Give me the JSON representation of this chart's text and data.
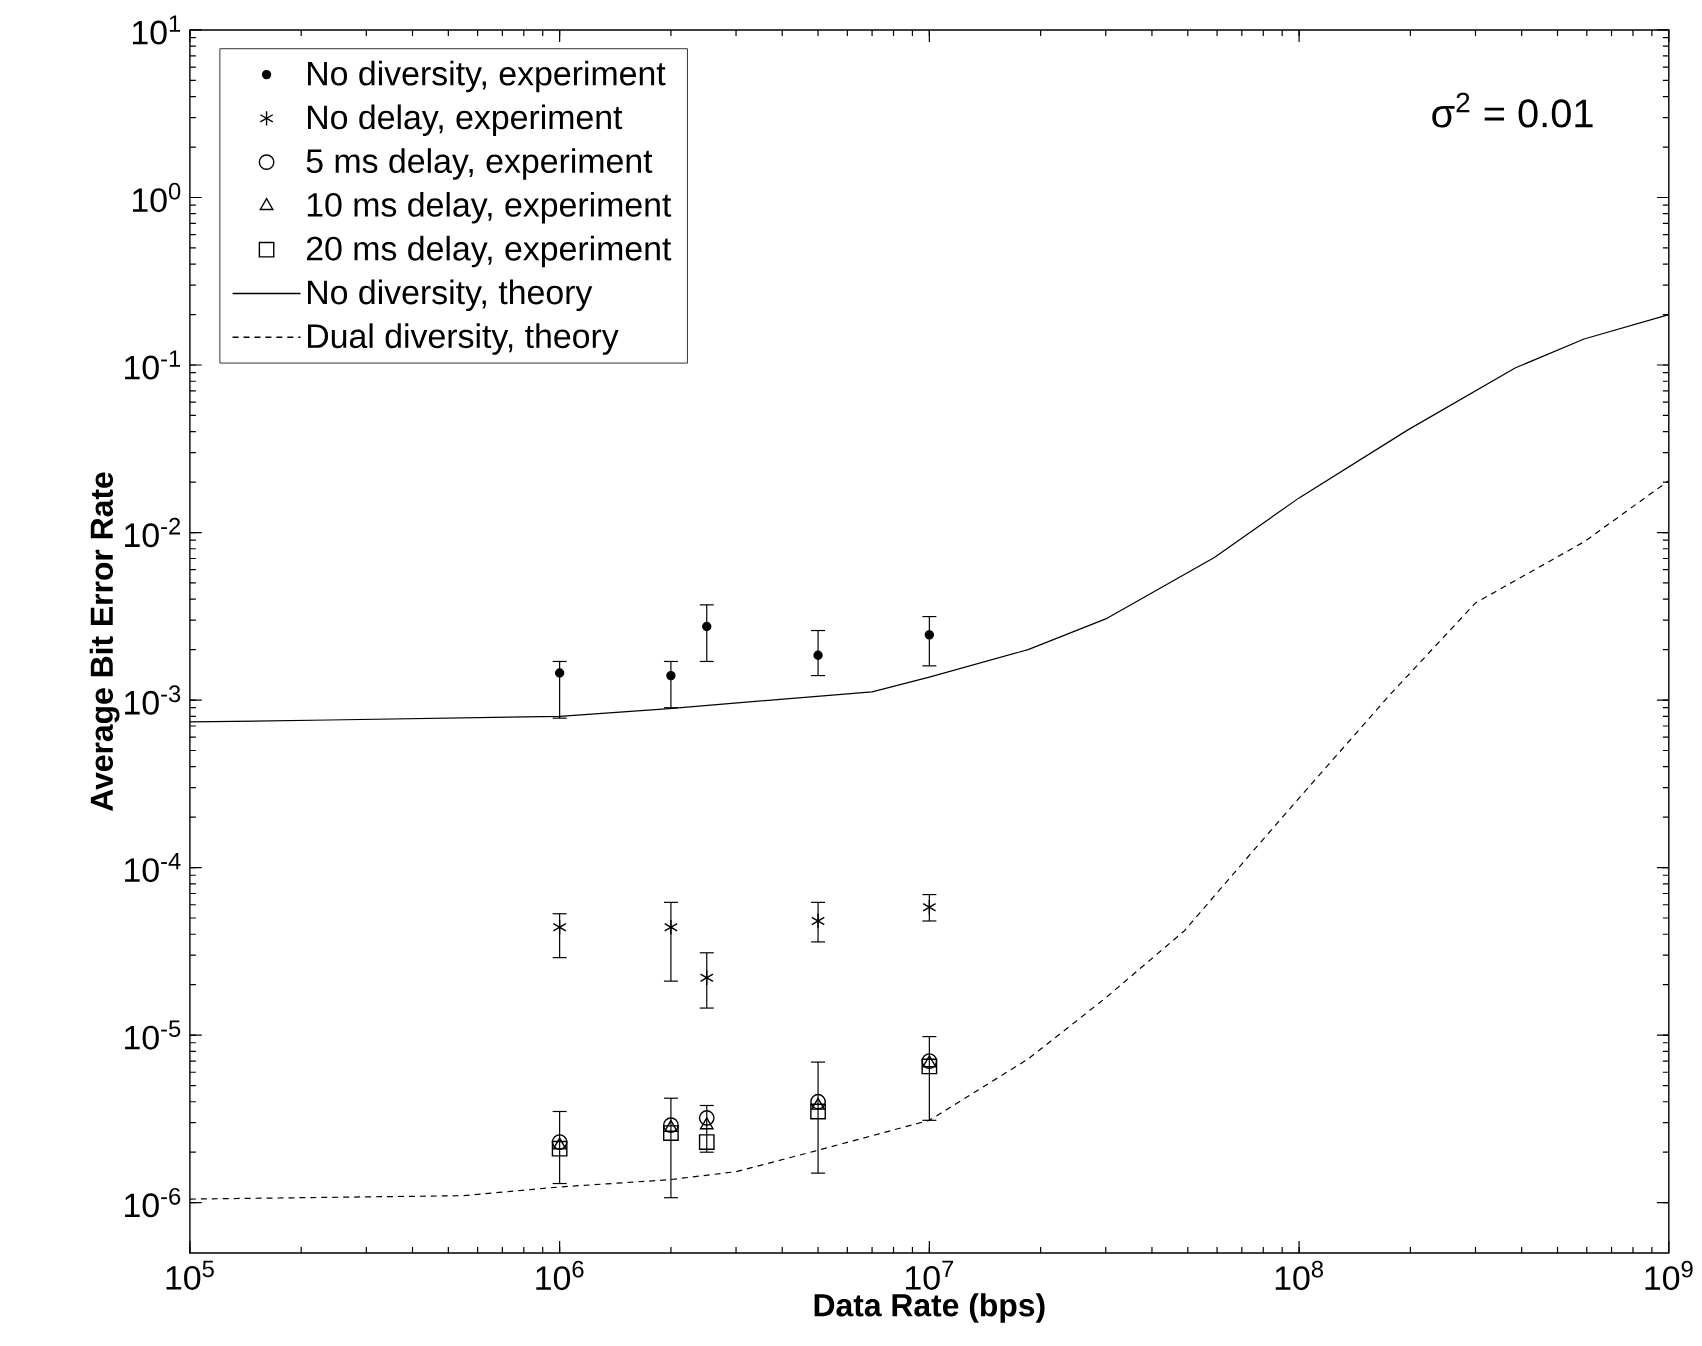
{
  "chart_data": {
    "type": "scatter",
    "xlabel": "Data Rate (bps)",
    "ylabel": "Average Bit Error Rate",
    "annotations": [
      {
        "text": "σ$^{2}$ = 0.01"
      }
    ],
    "log": "xy",
    "grid": false,
    "legend": "top left",
    "xlim": [
      100000,
      1000000000
    ],
    "ylim": [
      5e-07,
      10
    ],
    "xticks": [
      {
        "value": 100000,
        "label": "10$^{5}$"
      },
      {
        "value": 1000000,
        "label": "10$^{6}$"
      },
      {
        "value": 10000000,
        "label": "10$^{7}$"
      },
      {
        "value": 100000000,
        "label": "10$^{8}$"
      },
      {
        "value": 1000000000,
        "label": "10$^{9}$"
      }
    ],
    "yticks": [
      {
        "value": 1e-06,
        "label": "10$^{-6}$"
      },
      {
        "value": 1e-05,
        "label": "10$^{-5}$"
      },
      {
        "value": 0.0001,
        "label": "10$^{-4}$"
      },
      {
        "value": 0.001,
        "label": "10$^{-3}$"
      },
      {
        "value": 0.01,
        "label": "10$^{-2}$"
      },
      {
        "value": 0.1,
        "label": "10$^{-1}$"
      },
      {
        "value": 1,
        "label": "10$^{0}$"
      },
      {
        "value": 10,
        "label": "10$^{1}$"
      }
    ],
    "series": [
      {
        "name": "No diversity, experiment",
        "marker": "circle",
        "color": "#000000",
        "x": [
          1000000,
          2000000,
          2500000,
          5000000,
          10000000
        ],
        "values": [
          0.00145,
          0.0014,
          0.00275,
          0.00185,
          0.00245
        ],
        "errors": [
          [
            0.00078,
            0.0017
          ],
          [
            0.0009,
            0.0017
          ],
          [
            0.0017,
            0.0037
          ],
          [
            0.0014,
            0.0026
          ],
          [
            0.0016,
            0.00315
          ]
        ]
      },
      {
        "name": "No delay, experiment",
        "marker": "cross",
        "color": "#000000",
        "x": [
          1000000,
          2000000,
          2500000,
          5000000,
          10000000
        ],
        "values": [
          4.4e-05,
          4.4e-05,
          2.2e-05,
          4.8e-05,
          5.8e-05
        ],
        "errors": [
          [
            2.9e-05,
            5.3e-05
          ],
          [
            2.1e-05,
            6.2e-05
          ],
          [
            1.45e-05,
            3.1e-05
          ],
          [
            3.6e-05,
            6.2e-05
          ],
          [
            4.8e-05,
            6.9e-05
          ]
        ]
      },
      {
        "name": "5 ms delay, experiment",
        "marker": "circle",
        "color": "#000000",
        "x": [
          1000000,
          2000000,
          2500000,
          5000000,
          10000000
        ],
        "values": [
          2.3e-06,
          2.9e-06,
          3.2e-06,
          4e-06,
          7e-06
        ],
        "errors": [
          [
            1.3e-06,
            3.5e-06
          ],
          [
            1.07e-06,
            4.2e-06
          ],
          [
            2e-06,
            3.8e-06
          ],
          [
            1.5e-06,
            6.9e-06
          ],
          [
            3.1e-06,
            9.8e-06
          ]
        ]
      },
      {
        "name": "10 ms delay, experiment",
        "marker": "triangle",
        "color": "#000000",
        "x": [
          1000000,
          2000000,
          2500000,
          5000000,
          10000000
        ],
        "values": [
          2.2e-06,
          2.8e-06,
          2.9e-06,
          3.8e-06,
          6.8e-06
        ]
      },
      {
        "name": "20 ms delay, experiment",
        "marker": "square",
        "color": "#000000",
        "x": [
          1000000,
          2000000,
          2500000,
          5000000,
          10000000
        ],
        "values": [
          2.1e-06,
          2.6e-06,
          2.3e-06,
          3.5e-06,
          6.5e-06
        ]
      },
      {
        "name": "No diversity, theory",
        "type": "line",
        "line_style": "solid",
        "color": "#000000",
        "x": [
          100000,
          237000,
          1000000,
          1980000,
          7000000,
          10000000,
          18500000,
          30000000,
          59000000,
          100000000,
          197000000,
          384000000,
          590000000,
          1000000000
        ],
        "values": [
          0.00074,
          0.00076,
          0.0008,
          0.00089,
          0.00112,
          0.00137,
          0.002,
          0.00305,
          0.0071,
          0.0161,
          0.041,
          0.096,
          0.143,
          0.2
        ]
      },
      {
        "name": "Dual diversity, theory",
        "type": "line",
        "line_style": "dashed",
        "color": "#000000",
        "x": [
          100000,
          550000,
          1000000,
          1980000,
          3000000,
          4900000,
          10000000,
          18500000,
          30000000,
          49000000,
          70000000,
          100000000,
          175000000,
          300000000,
          590000000,
          1000000000
        ],
        "values": [
          1.05e-06,
          1.1e-06,
          1.24e-06,
          1.37e-06,
          1.53e-06,
          2.03e-06,
          3.1e-06,
          7.2e-06,
          1.67e-05,
          4.2e-05,
          0.000105,
          0.00026,
          0.00106,
          0.0038,
          0.0088,
          0.0204
        ]
      }
    ]
  }
}
